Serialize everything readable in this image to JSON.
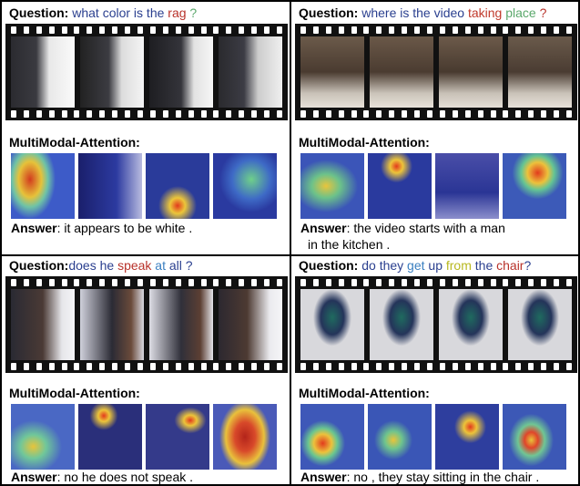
{
  "panels": [
    {
      "question_label": "Question",
      "question_sep": ":",
      "question_words": [
        {
          "t": " what color is the ",
          "c": "#2a3f8f"
        },
        {
          "t": "rag",
          "c": "#b8322a"
        },
        {
          "t": " ?",
          "c": "#5aa86b"
        }
      ],
      "attention_label": "MultiModal-Attention:",
      "answer_label": "Answer",
      "answer_text": ": it appears to be white .",
      "answer_text_2": ""
    },
    {
      "question_label": "Question",
      "question_sep": ":",
      "question_words": [
        {
          "t": " where is the video ",
          "c": "#2a3f8f"
        },
        {
          "t": "taking",
          "c": "#c0392b"
        },
        {
          "t": " place",
          "c": "#5aa86b"
        },
        {
          "t": " ?",
          "c": "#b8322a"
        }
      ],
      "attention_label": "MultiModal-Attention:",
      "answer_label": "Answer",
      "answer_text": ": the video starts with a man",
      "answer_text_2": "in the kitchen ."
    },
    {
      "question_label": "Question",
      "question_sep": ":",
      "question_words": [
        {
          "t": "does he ",
          "c": "#2a3f8f"
        },
        {
          "t": "speak",
          "c": "#b8322a"
        },
        {
          "t": " at",
          "c": "#3a7fc0"
        },
        {
          "t": " all ?",
          "c": "#2a3f8f"
        }
      ],
      "attention_label": "MultiModal-Attention:",
      "answer_label": "Answer",
      "answer_text": ": no he does not speak .",
      "answer_text_2": ""
    },
    {
      "question_label": "Question",
      "question_sep": ":",
      "question_words": [
        {
          "t": " do they ",
          "c": "#2a3f8f"
        },
        {
          "t": "get",
          "c": "#3a7fc0"
        },
        {
          "t": " up",
          "c": "#2a3f8f"
        },
        {
          "t": " from",
          "c": "#b8b820"
        },
        {
          "t": " the",
          "c": "#2a3f8f"
        },
        {
          "t": " chair",
          "c": "#b8322a"
        },
        {
          "t": "?",
          "c": "#2a3f8f"
        }
      ],
      "attention_label": "MultiModal-Attention:",
      "answer_label": "Answer",
      "answer_text": ":  no , they stay sitting in the chair .",
      "answer_text_2": ""
    }
  ]
}
